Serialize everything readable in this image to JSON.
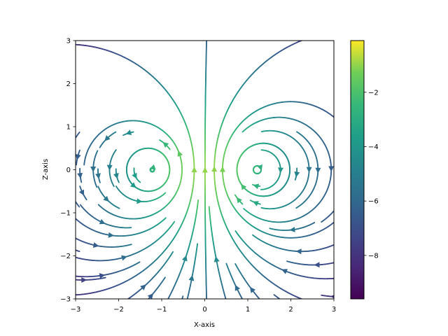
{
  "chart_data": {
    "type": "streamplot",
    "title": "",
    "xlabel": "X-axis",
    "ylabel": "Z-axis",
    "xlim": [
      -3,
      3
    ],
    "ylim": [
      -3,
      3
    ],
    "xticks": [
      -3,
      -2,
      -1,
      0,
      1,
      2,
      3
    ],
    "yticks": [
      -3,
      -2,
      -1,
      0,
      1,
      2,
      3
    ],
    "grid": false,
    "field": "dipole-like streamlines circulating around two vortex centers",
    "vortex_centers": [
      [
        -1.2,
        0.0
      ],
      [
        1.2,
        0.0
      ]
    ],
    "color_quantity_range": [
      -9.6,
      -0.1
    ],
    "colorbar": {
      "colormap": "viridis",
      "range": [
        -9.6,
        -0.1
      ],
      "ticks": [
        -2,
        -4,
        -6,
        -8
      ],
      "tick_labels": [
        "−2",
        "−4",
        "−6",
        "−8"
      ]
    }
  }
}
